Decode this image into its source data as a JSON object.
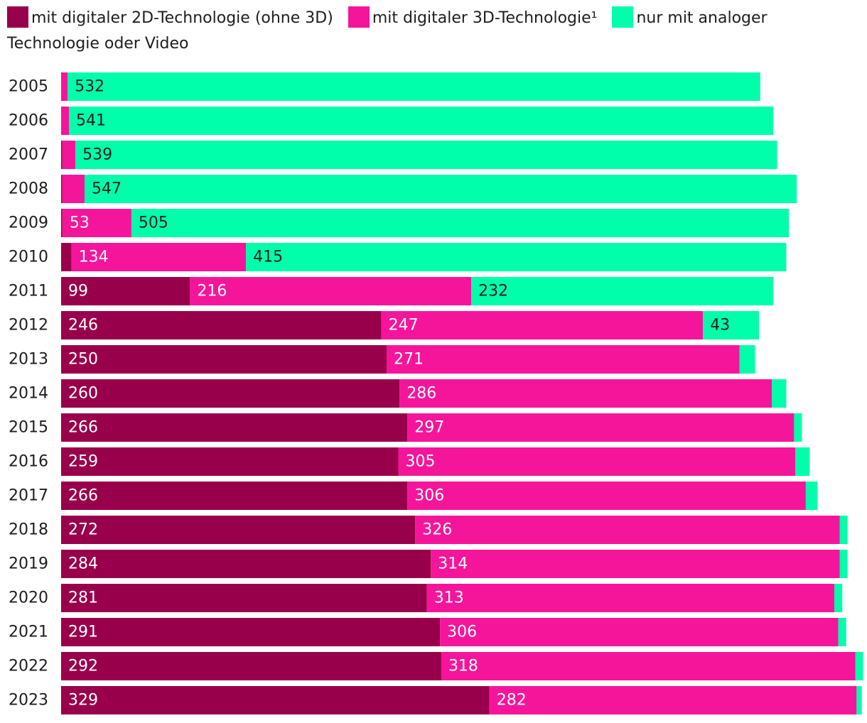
{
  "colors": {
    "digital_2d": "#99004c",
    "digital_3d": "#f5159b",
    "analog": "#00ffaa",
    "label_on_dark": "#ffffff",
    "label_on_light": "#1e1e1e"
  },
  "chart_data": {
    "type": "bar",
    "orientation": "horizontal",
    "stacked": true,
    "title": "",
    "xlabel": "",
    "ylabel": "",
    "legend": [
      "mit digitaler 2D-Technologie (ohne 3D)",
      "mit digitaler 3D-Technologie¹",
      "nur mit analoger Technologie oder Video"
    ],
    "categories": [
      "2005",
      "2006",
      "2007",
      "2008",
      "2009",
      "2010",
      "2011",
      "2012",
      "2013",
      "2014",
      "2015",
      "2016",
      "2017",
      "2018",
      "2019",
      "2020",
      "2021",
      "2022",
      "2023"
    ],
    "series": [
      {
        "name": "mit digitaler 2D-Technologie (ohne 3D)",
        "key": "digital_2d",
        "values": [
          0,
          0,
          1,
          1,
          1,
          8,
          99,
          246,
          250,
          260,
          266,
          259,
          266,
          272,
          284,
          281,
          291,
          292,
          329
        ],
        "labels": [
          "",
          "",
          "",
          "",
          "",
          "",
          "99",
          "246",
          "250",
          "260",
          "266",
          "259",
          "266",
          "272",
          "284",
          "281",
          "291",
          "292",
          "329"
        ]
      },
      {
        "name": "mit digitaler 3D-Technologie¹",
        "key": "digital_3d",
        "values": [
          5,
          6,
          10,
          17,
          53,
          134,
          216,
          247,
          271,
          286,
          297,
          305,
          306,
          326,
          314,
          313,
          306,
          318,
          282
        ],
        "labels": [
          "",
          "",
          "",
          "",
          "53",
          "134",
          "216",
          "247",
          "271",
          "286",
          "297",
          "305",
          "306",
          "326",
          "314",
          "313",
          "306",
          "318",
          "282"
        ]
      },
      {
        "name": "nur mit analoger Technologie oder Video",
        "key": "analog",
        "values": [
          532,
          541,
          539,
          547,
          505,
          415,
          232,
          43,
          12,
          11,
          6,
          11,
          9,
          6,
          6,
          6,
          6,
          6,
          4
        ],
        "labels": [
          "532",
          "541",
          "539",
          "547",
          "505",
          "415",
          "232",
          "43",
          "",
          "",
          "",
          "",
          "",
          "",
          "",
          "",
          "",
          "",
          ""
        ]
      }
    ],
    "xlim": [
      0,
      612
    ],
    "grid": false,
    "legend_position": "top-left"
  }
}
